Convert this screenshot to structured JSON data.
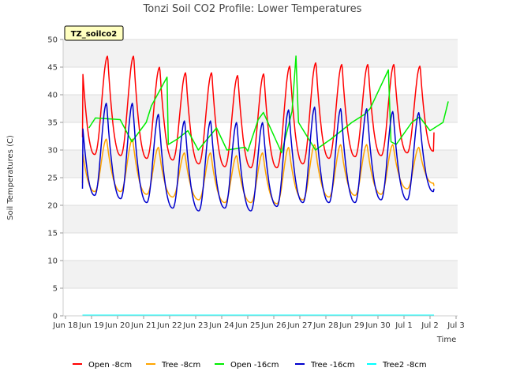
{
  "chart_data": {
    "type": "line",
    "title": "Tonzi Soil CO2 Profile: Lower Temperatures",
    "xlabel": "Time",
    "ylabel": "Soil Temperatures (C)",
    "site_label": "TZ_soilco2",
    "ylim": [
      0,
      50
    ],
    "yticks": [
      0,
      5,
      10,
      15,
      20,
      25,
      30,
      35,
      40,
      45,
      50
    ],
    "xlim": [
      0,
      15
    ],
    "xticks": [
      {
        "value": 0,
        "label": "Jun 18"
      },
      {
        "value": 1,
        "label": "Jun 19"
      },
      {
        "value": 2,
        "label": "Jun 20"
      },
      {
        "value": 3,
        "label": "Jun 21"
      },
      {
        "value": 4,
        "label": "Jun 22"
      },
      {
        "value": 5,
        "label": "Jun 23"
      },
      {
        "value": 6,
        "label": "Jun 24"
      },
      {
        "value": 7,
        "label": "Jun 25"
      },
      {
        "value": 8,
        "label": "Jun 26"
      },
      {
        "value": 9,
        "label": "Jun 27"
      },
      {
        "value": 10,
        "label": "Jun 28"
      },
      {
        "value": 11,
        "label": "Jun 29"
      },
      {
        "value": 12,
        "label": "Jun 30"
      },
      {
        "value": 13,
        "label": "Jul 1"
      },
      {
        "value": 14,
        "label": "Jul 2"
      },
      {
        "value": 15,
        "label": "Jul 3"
      }
    ],
    "grid": true,
    "legend_position": "bottom",
    "series": [
      {
        "name": "Open -8cm",
        "color": "#ff0000",
        "daily_min": [
          29.0,
          29.2,
          29.0,
          28.5,
          28.2,
          27.5,
          27.0,
          26.8,
          26.8,
          27.5,
          28.5,
          28.8,
          29.0,
          29.5,
          29.8
        ],
        "daily_max": [
          47.5,
          47.0,
          47.0,
          45.0,
          44.0,
          44.0,
          43.5,
          43.8,
          45.2,
          45.8,
          45.5,
          45.5,
          45.5,
          45.2
        ],
        "start": 32.3,
        "end": 33.2
      },
      {
        "name": "Tree -8cm",
        "color": "#ffa500",
        "daily_min": [
          23.0,
          22.5,
          22.5,
          22.0,
          21.5,
          21.0,
          20.5,
          20.5,
          20.3,
          21.0,
          21.5,
          21.8,
          22.0,
          23.0,
          24.0
        ],
        "daily_max": [
          32.5,
          32.0,
          32.0,
          30.5,
          29.5,
          29.5,
          29.0,
          29.5,
          30.5,
          31.0,
          31.0,
          31.0,
          31.0,
          30.5
        ],
        "start": 24.0,
        "end": 23.5
      },
      {
        "name": "Open -16cm",
        "color": "#00ee00",
        "points": [
          [
            0.9,
            34.0
          ],
          [
            1.15,
            35.8
          ],
          [
            2.1,
            35.5
          ],
          [
            2.55,
            31.5
          ],
          [
            3.1,
            35.0
          ],
          [
            3.3,
            38.0
          ],
          [
            3.9,
            43.2
          ],
          [
            3.95,
            31.0
          ],
          [
            4.3,
            32.0
          ],
          [
            4.7,
            33.5
          ],
          [
            5.1,
            30.0
          ],
          [
            5.8,
            34.0
          ],
          [
            6.2,
            30.0
          ],
          [
            6.9,
            30.5
          ],
          [
            7.0,
            29.8
          ],
          [
            7.4,
            35.5
          ],
          [
            7.6,
            36.8
          ],
          [
            8.3,
            29.5
          ],
          [
            8.7,
            37.0
          ],
          [
            8.85,
            47.0
          ],
          [
            8.95,
            35.0
          ],
          [
            9.6,
            30.0
          ],
          [
            10.2,
            32.0
          ],
          [
            11.0,
            35.0
          ],
          [
            11.5,
            36.5
          ],
          [
            11.7,
            37.5
          ],
          [
            12.4,
            44.5
          ],
          [
            12.5,
            31.5
          ],
          [
            12.7,
            31.0
          ],
          [
            13.3,
            35.0
          ],
          [
            13.6,
            36.0
          ],
          [
            14.0,
            33.5
          ],
          [
            14.5,
            35.0
          ],
          [
            14.7,
            38.8
          ]
        ]
      },
      {
        "name": "Tree -16cm",
        "color": "#0000cc",
        "daily_min": [
          21.8,
          21.8,
          21.2,
          20.5,
          19.5,
          19.0,
          19.5,
          19.0,
          19.8,
          20.5,
          20.5,
          20.5,
          21.0,
          21.0,
          22.5
        ],
        "daily_max": [
          39.8,
          38.5,
          38.5,
          36.5,
          35.3,
          35.3,
          35.0,
          35.0,
          37.3,
          37.8,
          37.5,
          37.5,
          37.0,
          36.8
        ],
        "start": 23.0,
        "end": 23.0
      },
      {
        "name": "Tree2 -8cm",
        "color": "#00ffff",
        "constant": 0.1
      }
    ]
  }
}
